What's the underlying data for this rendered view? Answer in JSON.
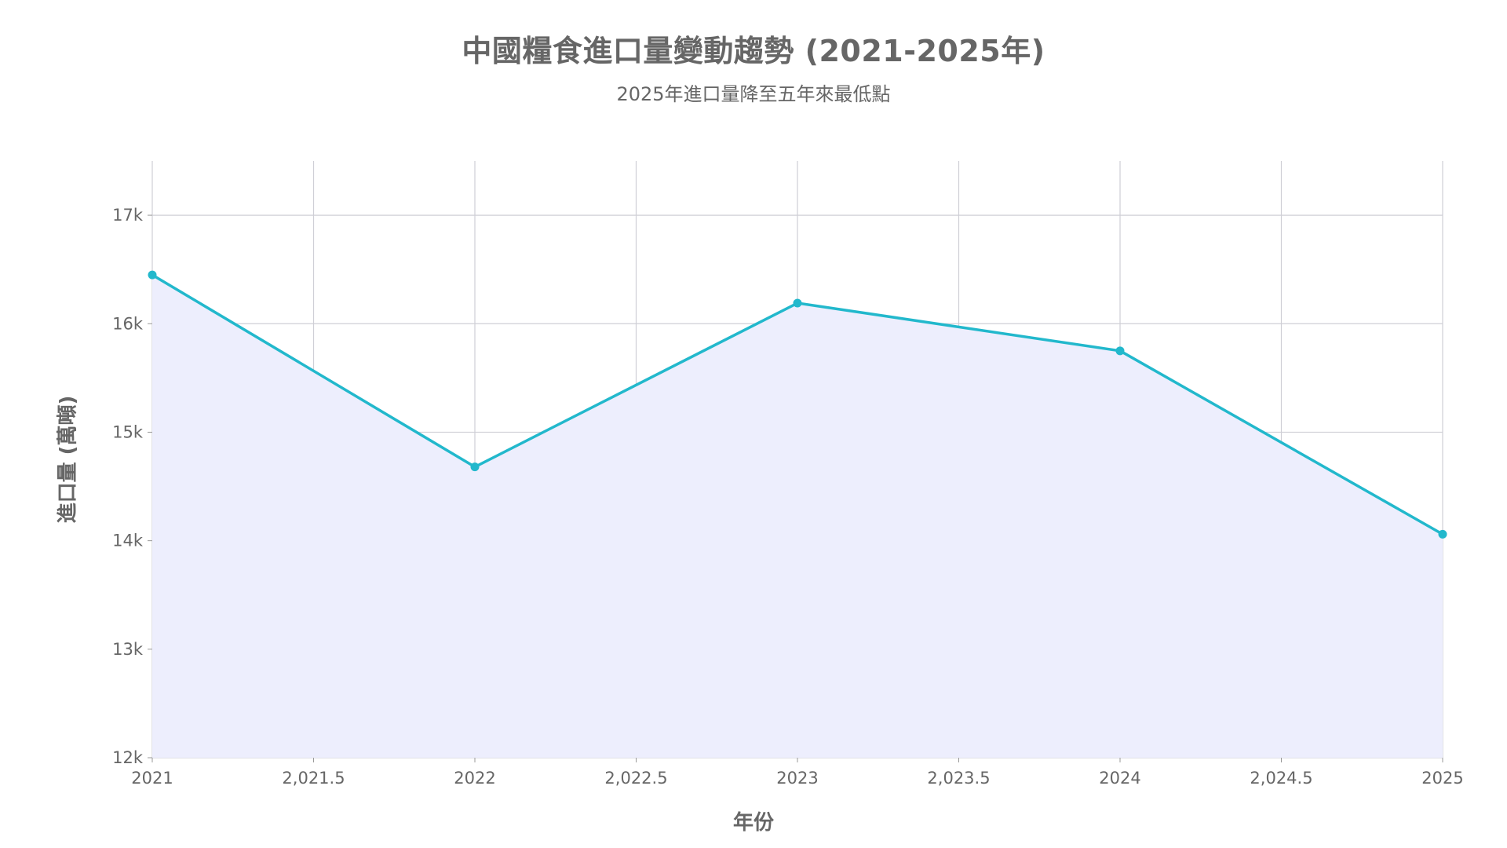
{
  "chart_data": {
    "type": "area",
    "title": "中國糧食進口量變動趨勢 (2021-2025年)",
    "subtitle": "2025年進口量降至五年來最低點",
    "xlabel": "年份",
    "ylabel": "進口量 (萬噸)",
    "x": [
      2021,
      2022,
      2023,
      2024,
      2025
    ],
    "series": [
      {
        "values": [
          16450,
          14680,
          16190,
          15750,
          14060
        ]
      }
    ],
    "xlim": [
      2021,
      2025
    ],
    "ylim": [
      12000,
      17500
    ],
    "x_tick_labels": [
      "2021",
      "2,021.5",
      "2022",
      "2,022.5",
      "2023",
      "2,023.5",
      "2024",
      "2,024.5",
      "2025"
    ],
    "y_tick_labels": [
      "12k",
      "13k",
      "14k",
      "15k",
      "16k",
      "17k"
    ],
    "grid": true,
    "line_color": "#22B8CC",
    "fill_color": "#EDEEFD",
    "grid_color": "#CFCFD6"
  }
}
